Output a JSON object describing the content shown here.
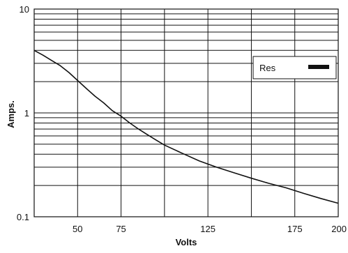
{
  "chart_data": {
    "type": "line",
    "xlabel": "Volts",
    "ylabel": "Amps.",
    "x_scale": "linear",
    "y_scale": "log",
    "xlim": [
      25,
      200
    ],
    "ylim": [
      0.1,
      10
    ],
    "x_ticks": [
      {
        "value": 50,
        "label": "50"
      },
      {
        "value": 75,
        "label": "75"
      },
      {
        "value": 125,
        "label": "125"
      },
      {
        "value": 175,
        "label": "175"
      },
      {
        "value": 200,
        "label": "200"
      }
    ],
    "x_gridlines": [
      50,
      75,
      100,
      125,
      150,
      175
    ],
    "y_ticks": [
      {
        "value": 0.1,
        "label": "0.1"
      },
      {
        "value": 1,
        "label": "1"
      },
      {
        "value": 10,
        "label": "10"
      }
    ],
    "y_gridlines": [
      0.2,
      0.3,
      0.4,
      0.5,
      0.6,
      0.7,
      0.8,
      0.9,
      1,
      2,
      3,
      4,
      5,
      6,
      7,
      8,
      9
    ],
    "grid": true,
    "legend": {
      "position": "right",
      "entries": [
        "Res"
      ]
    },
    "series": [
      {
        "name": "Res",
        "color": "#111111",
        "x": [
          25,
          30,
          35,
          40,
          45,
          50,
          55,
          60,
          65,
          70,
          75,
          80,
          85,
          90,
          95,
          100,
          110,
          120,
          130,
          140,
          150,
          160,
          170,
          180,
          190,
          200
        ],
        "y": [
          4.0,
          3.6,
          3.2,
          2.85,
          2.45,
          2.05,
          1.72,
          1.45,
          1.25,
          1.05,
          0.93,
          0.8,
          0.7,
          0.62,
          0.55,
          0.49,
          0.41,
          0.345,
          0.3,
          0.265,
          0.235,
          0.21,
          0.19,
          0.168,
          0.15,
          0.135
        ]
      }
    ]
  }
}
